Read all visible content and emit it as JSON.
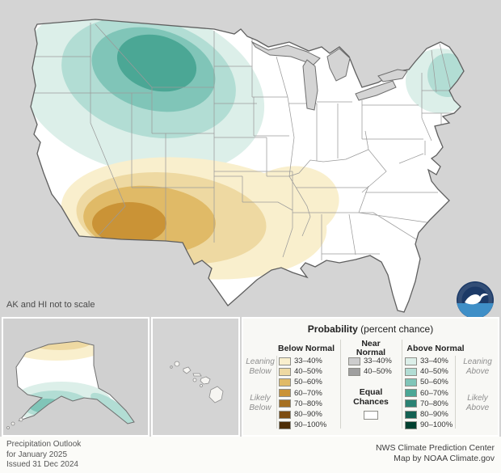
{
  "map": {
    "note": "AK and HI not to scale",
    "land_color": "#ffffff",
    "background_color": "#d4d4d4",
    "outline_color": "#5f5f5f",
    "state_border_color": "#9a9a9a",
    "regions": [
      {
        "area": "Pacific Northwest / Northern Rockies / Northern Plains",
        "outlook": "Above Normal",
        "max_probability": "60-70%"
      },
      {
        "area": "Northern New England / Eastern New York",
        "outlook": "Above Normal",
        "max_probability": "40-50%"
      },
      {
        "area": "Southwest / Southern Plains / Gulf South",
        "outlook": "Below Normal",
        "max_probability": "60-70%"
      },
      {
        "area": "Northern Alaska",
        "outlook": "Below Normal",
        "max_probability": "40-50%"
      },
      {
        "area": "Southern Alaska",
        "outlook": "Above Normal",
        "max_probability": "50-60%"
      },
      {
        "area": "Remainder of CONUS and Hawaii",
        "outlook": "Equal Chances",
        "max_probability": "EC"
      }
    ]
  },
  "legend": {
    "title_bold": "Probability",
    "title_rest": " (percent chance)",
    "below": {
      "header": "Below Normal",
      "leaning_label": "Leaning\nBelow",
      "likely_label": "Likely\nBelow",
      "rows": [
        {
          "range": "33–40%",
          "color": "#f9efcd"
        },
        {
          "range": "40–50%",
          "color": "#eed9a2"
        },
        {
          "range": "50–60%",
          "color": "#e0ba67"
        },
        {
          "range": "60–70%",
          "color": "#ca9336"
        },
        {
          "range": "70–80%",
          "color": "#a67020"
        },
        {
          "range": "80–90%",
          "color": "#7d4e13"
        },
        {
          "range": "90–100%",
          "color": "#4e2e07"
        }
      ]
    },
    "near": {
      "header": "Near\nNormal",
      "rows": [
        {
          "range": "33–40%",
          "color": "#cdcdcd"
        },
        {
          "range": "40–50%",
          "color": "#9f9f9f"
        }
      ],
      "equal_label": "Equal\nChances",
      "equal_color": "#ffffff"
    },
    "above": {
      "header": "Above Normal",
      "leaning_label": "Leaning\nAbove",
      "likely_label": "Likely\nAbove",
      "rows": [
        {
          "range": "33–40%",
          "color": "#dcefe9"
        },
        {
          "range": "40–50%",
          "color": "#b2ddd4"
        },
        {
          "range": "50–60%",
          "color": "#80c5b8"
        },
        {
          "range": "60–70%",
          "color": "#4ba795"
        },
        {
          "range": "70–80%",
          "color": "#2b8374"
        },
        {
          "range": "80–90%",
          "color": "#136152"
        },
        {
          "range": "90–100%",
          "color": "#00402f"
        }
      ]
    }
  },
  "footer": {
    "left_lines": [
      "Precipitation Outlook",
      "for January 2025",
      "Issued 31 Dec 2024"
    ],
    "right_lines": [
      "NWS Climate Prediction Center",
      "Map by NOAA Climate.gov"
    ]
  },
  "logo": {
    "name": "NOAA",
    "navy": "#1c3a67",
    "ocean": "#3f8fc7",
    "gull": "#ffffff"
  }
}
